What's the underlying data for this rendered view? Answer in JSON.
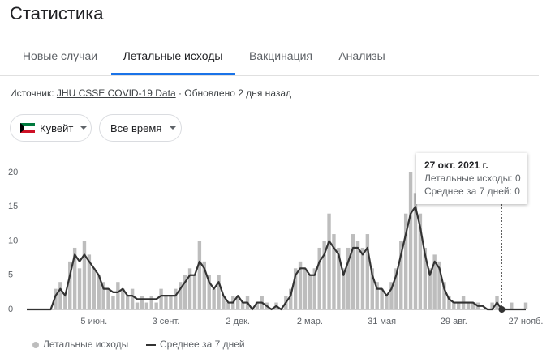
{
  "header": {
    "title": "Статистика"
  },
  "tabs": [
    "Новые случаи",
    "Летальные исходы",
    "Вакцинация",
    "Анализы"
  ],
  "source": {
    "prefix": "Источник:",
    "link": "JHU CSSE COVID-19 Data",
    "suffix": "· Обновлено 2 дня назад"
  },
  "filters": {
    "country": "Кувейт",
    "period": "Все время"
  },
  "tooltip": {
    "date": "27 окт. 2021 г.",
    "rows": [
      "Летальные исходы: 0",
      "Среднее за 7 дней: 0"
    ]
  },
  "chart_data": {
    "type": "bar",
    "categories": [
      null,
      null,
      null,
      null,
      null,
      null,
      null,
      null,
      null,
      null,
      null,
      null,
      null,
      null,
      "5 июн.",
      null,
      null,
      null,
      null,
      null,
      null,
      null,
      null,
      null,
      null,
      null,
      null,
      null,
      null,
      "3 сент.",
      null,
      null,
      null,
      null,
      null,
      null,
      null,
      null,
      null,
      null,
      null,
      null,
      null,
      null,
      "2 дек.",
      null,
      null,
      null,
      null,
      null,
      null,
      null,
      null,
      null,
      null,
      null,
      null,
      null,
      null,
      "2 мар.",
      null,
      null,
      null,
      null,
      null,
      null,
      null,
      null,
      null,
      null,
      null,
      null,
      null,
      null,
      "31 мая",
      null,
      null,
      null,
      null,
      null,
      null,
      null,
      null,
      null,
      null,
      null,
      null,
      null,
      null,
      "29 авг.",
      null,
      null,
      null,
      null,
      null,
      null,
      null,
      null,
      null,
      null,
      null,
      null,
      null,
      null,
      "27 нояб."
    ],
    "series": [
      {
        "name": "Летальные исходы",
        "color": "#bdbdbd",
        "type": "bar",
        "values": [
          0,
          0,
          0,
          0,
          0,
          0,
          3,
          4,
          2,
          7,
          9,
          6,
          10,
          8,
          6,
          5,
          4,
          3,
          2,
          4,
          3,
          2,
          3,
          1,
          2,
          1,
          2,
          1,
          3,
          2,
          2,
          3,
          4,
          5,
          6,
          5,
          10,
          7,
          5,
          3,
          5,
          2,
          1,
          2,
          2,
          1,
          2,
          0,
          1,
          2,
          1,
          0,
          1,
          0,
          2,
          3,
          6,
          7,
          6,
          5,
          6,
          9,
          10,
          14,
          11,
          9,
          6,
          9,
          11,
          10,
          9,
          11,
          6,
          4,
          3,
          2,
          4,
          6,
          10,
          14,
          20,
          17,
          14,
          9,
          6,
          8,
          7,
          4,
          2,
          1,
          1,
          2,
          1,
          1,
          1,
          0,
          0,
          1,
          2,
          0,
          0,
          1,
          0,
          0,
          1
        ]
      },
      {
        "name": "Среднее за 7 дней",
        "color": "#333333",
        "type": "line",
        "values": [
          0,
          0,
          0,
          0,
          0,
          0,
          2,
          3,
          2,
          5,
          8,
          7,
          8,
          7,
          6,
          5,
          3,
          3,
          2.5,
          2.5,
          3,
          2,
          2,
          1.5,
          1.5,
          1.5,
          1.5,
          1.5,
          2,
          2,
          2,
          2,
          3,
          4,
          5,
          5,
          7,
          6,
          4,
          3,
          4,
          2,
          1,
          1,
          2,
          1,
          1,
          0,
          1,
          1,
          0.5,
          0,
          0.5,
          0,
          1,
          2,
          5,
          6,
          6,
          5,
          5,
          7,
          8,
          10,
          9,
          8,
          5,
          7,
          9,
          9,
          8,
          9,
          5,
          3,
          3,
          2,
          3,
          5,
          8,
          11,
          14,
          15,
          12,
          8,
          5,
          7,
          6,
          3,
          1.5,
          1,
          1,
          1,
          1,
          1,
          0.5,
          0.5,
          0,
          0,
          1,
          0,
          0,
          0,
          0,
          0,
          0
        ]
      }
    ],
    "ylim": [
      0,
      20
    ],
    "yticks": [
      0,
      5,
      10,
      15,
      20
    ],
    "grid": false
  }
}
